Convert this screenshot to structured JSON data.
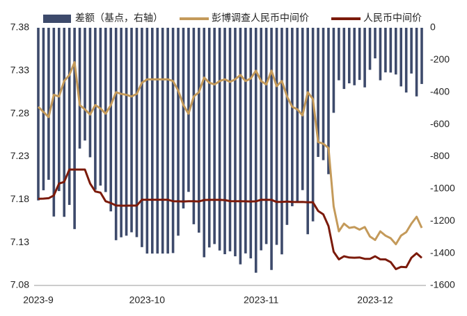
{
  "chart_data": {
    "type": "bar_line",
    "legend": "top",
    "categories": [
      "2023-9",
      null,
      null,
      null,
      null,
      null,
      null,
      null,
      null,
      null,
      null,
      null,
      null,
      null,
      null,
      null,
      null,
      null,
      null,
      null,
      null,
      "2023-10",
      null,
      null,
      null,
      null,
      null,
      null,
      null,
      null,
      null,
      null,
      null,
      null,
      null,
      null,
      null,
      null,
      null,
      null,
      null,
      null,
      null,
      "2023-11",
      null,
      null,
      null,
      null,
      null,
      null,
      null,
      null,
      null,
      null,
      null,
      null,
      null,
      null,
      null,
      null,
      null,
      null,
      null,
      null,
      null,
      "2023-12",
      null,
      null,
      null,
      null,
      null,
      null,
      null,
      null,
      null
    ],
    "ylim": [
      7.08,
      7.38
    ],
    "yticks": [
      7.08,
      7.13,
      7.18,
      7.23,
      7.28,
      7.33,
      7.38
    ],
    "y2lim": [
      -1600,
      0
    ],
    "y2ticks": [
      -1600,
      -1400,
      -1200,
      -1000,
      -800,
      -600,
      -400,
      -200,
      0
    ],
    "series": [
      {
        "name": "差额（基点，右轴）",
        "color": "#3d4a6b",
        "kind": "bar",
        "axis": "y2",
        "values": [
          -1072,
          -1009,
          -944,
          -1172,
          -1014,
          -1174,
          -1100,
          -1250,
          -750,
          -700,
          -804,
          -1006,
          -980,
          -1020,
          -1140,
          -1319,
          -1301,
          -1291,
          -1270,
          -1300,
          -1362,
          -1402,
          -1402,
          -1402,
          -1402,
          -1402,
          -1399,
          -1291,
          -1122,
          -1019,
          -1220,
          -1272,
          -1425,
          -1364,
          -1343,
          -1383,
          -1406,
          -1388,
          -1419,
          -1469,
          -1401,
          -1432,
          -1521,
          -1382,
          -1343,
          -1504,
          -1348,
          -1407,
          -1224,
          -1108,
          -1079,
          -1008,
          -1282,
          -1202,
          -802,
          -822,
          -909,
          -528,
          -326,
          -380,
          -345,
          -357,
          -324,
          -370,
          -261,
          -190,
          -326,
          -277,
          -278,
          -290,
          -364,
          -402,
          -284,
          -426,
          -349
        ]
      },
      {
        "name": "彭博调查人民币中间价",
        "color": "#c49a5a",
        "kind": "line",
        "values": [
          7.288,
          7.282,
          7.276,
          7.302,
          7.3,
          7.318,
          7.325,
          7.34,
          7.29,
          7.285,
          7.279,
          7.29,
          7.286,
          7.28,
          7.29,
          7.305,
          7.303,
          7.302,
          7.3,
          7.303,
          7.316,
          7.32,
          7.32,
          7.32,
          7.32,
          7.32,
          7.318,
          7.307,
          7.29,
          7.28,
          7.3,
          7.305,
          7.322,
          7.316,
          7.314,
          7.318,
          7.32,
          7.317,
          7.32,
          7.325,
          7.318,
          7.321,
          7.33,
          7.318,
          7.314,
          7.33,
          7.312,
          7.318,
          7.3,
          7.288,
          7.285,
          7.278,
          7.305,
          7.297,
          7.247,
          7.245,
          7.24,
          7.172,
          7.143,
          7.152,
          7.147,
          7.148,
          7.145,
          7.148,
          7.137,
          7.133,
          7.143,
          7.138,
          7.135,
          7.128,
          7.138,
          7.142,
          7.152,
          7.16,
          7.147
        ]
      },
      {
        "name": "人民币中间价",
        "color": "#7b1a0a",
        "kind": "line",
        "values": [
          7.1808,
          7.1811,
          7.1816,
          7.1848,
          7.1986,
          7.2006,
          7.215,
          7.215,
          7.215,
          7.215,
          7.1986,
          7.1894,
          7.188,
          7.178,
          7.176,
          7.1731,
          7.1729,
          7.1729,
          7.173,
          7.173,
          7.1798,
          7.1798,
          7.1798,
          7.1798,
          7.1798,
          7.1798,
          7.1781,
          7.1779,
          7.1778,
          7.1781,
          7.178,
          7.1778,
          7.1795,
          7.1796,
          7.1797,
          7.1797,
          7.1794,
          7.1782,
          7.1781,
          7.1781,
          7.1779,
          7.1778,
          7.1779,
          7.1798,
          7.1797,
          7.1796,
          7.1772,
          7.1773,
          7.1776,
          7.1772,
          7.1771,
          7.1772,
          7.1768,
          7.1768,
          7.1668,
          7.1628,
          7.1491,
          7.1192,
          7.1104,
          7.114,
          7.1125,
          7.1123,
          7.1126,
          7.111,
          7.1109,
          7.114,
          7.1104,
          7.1103,
          7.1072,
          7.099,
          7.1016,
          7.1012,
          7.1123,
          7.1174,
          7.1121
        ]
      }
    ]
  }
}
